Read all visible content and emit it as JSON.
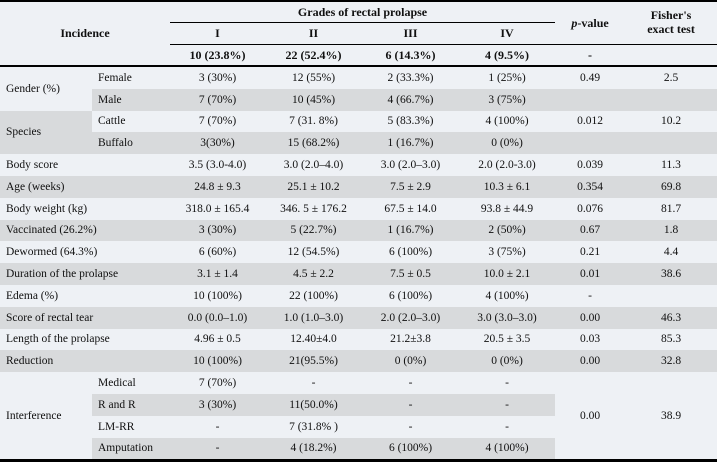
{
  "colors": {
    "light_row": "#eef1f5",
    "gray_row": "#d8dadc",
    "rule": "#000000",
    "text": "#101010"
  },
  "header": {
    "incidence": "Incidence",
    "grades_title": "Grades of rectal prolapse",
    "grade_cols": [
      "I",
      "II",
      "III",
      "IV"
    ],
    "totals": [
      "10 (23.8%)",
      "22 (52.4%)",
      "6 (14.3%)",
      "4 (9.5%)"
    ],
    "totals_p": "-",
    "totals_fisher": "",
    "p_italic": "p",
    "p_rest": "-value",
    "fisher_line1": "Fisher's",
    "fisher_line2": "exact test"
  },
  "rows": [
    {
      "group": "Gender (%)",
      "groupSpan": 2,
      "groupShade": "light",
      "label": "Female",
      "shade": "light",
      "values": [
        "3 (30%)",
        "12 (55%)",
        "2 (33.3%)",
        "1 (25%)"
      ],
      "p": "0.49",
      "fisher": "2.5"
    },
    {
      "label": "Male",
      "shade": "gray",
      "values": [
        "7 (70%)",
        "10 (45%)",
        "4 (66.7%)",
        "3 (75%)"
      ],
      "p": "",
      "fisher": ""
    },
    {
      "group": "Species",
      "groupSpan": 2,
      "groupShade": "gray",
      "label": "Cattle",
      "shade": "light",
      "values": [
        "7 (70%)",
        "7 (31. 8%)",
        "5 (83.3%)",
        "4 (100%)"
      ],
      "p": "0.012",
      "fisher": "10.2"
    },
    {
      "label": "Buffalo",
      "shade": "gray",
      "values": [
        "3(30%)",
        "15 (68.2%)",
        "1 (16.7%)",
        "0 (0%)"
      ],
      "p": "",
      "fisher": ""
    },
    {
      "label": "Body score",
      "wide": true,
      "shade": "light",
      "values": [
        "3.5 (3.0-4.0)",
        "3.0 (2.0–4.0)",
        "3.0 (2.0–3.0)",
        "2.0 (2.0-3.0)"
      ],
      "p": "0.039",
      "fisher": "11.3"
    },
    {
      "label": "Age (weeks)",
      "wide": true,
      "shade": "gray",
      "values": [
        "24.8 ± 9.3",
        "25.1 ± 10.2",
        "7.5 ± 2.9",
        "10.3 ± 6.1"
      ],
      "p": "0.354",
      "fisher": "69.8"
    },
    {
      "label": "Body weight (kg)",
      "wide": true,
      "shade": "light",
      "values": [
        "318.0 ± 165.4",
        "346. 5 ± 176.2",
        "67.5 ± 14.0",
        "93.8 ± 44.9"
      ],
      "p": "0.076",
      "fisher": "81.7"
    },
    {
      "label": "Vaccinated (26.2%)",
      "wide": true,
      "shade": "gray",
      "values": [
        "3 (30%)",
        "5 (22.7%)",
        "1 (16.7%)",
        "2 (50%)"
      ],
      "p": "0.67",
      "fisher": "1.8"
    },
    {
      "label": "Dewormed (64.3%)",
      "wide": true,
      "shade": "light",
      "values": [
        "6 (60%)",
        "12 (54.5%)",
        "6 (100%)",
        "3 (75%)"
      ],
      "p": "0.21",
      "fisher": "4.4"
    },
    {
      "label": "Duration of the prolapse",
      "wide": true,
      "shade": "gray",
      "values": [
        "3.1 ± 1.4",
        "4.5 ± 2.2",
        "7.5 ± 0.5",
        "10.0 ± 2.1"
      ],
      "p": "0.01",
      "fisher": "38.6"
    },
    {
      "label": "Edema (%)",
      "wide": true,
      "shade": "light",
      "values": [
        "10 (100%)",
        "22 (100%)",
        "6 (100%)",
        "4 (100%)"
      ],
      "p": "-",
      "fisher": ""
    },
    {
      "label": "Score of rectal tear",
      "wide": true,
      "shade": "gray",
      "values": [
        "0.0 (0.0–1.0)",
        "1.0 (1.0–3.0)",
        "2.0 (2.0–3.0)",
        "3.0 (3.0–3.0)"
      ],
      "p": "0.00",
      "fisher": "46.3"
    },
    {
      "label": "Length of the prolapse",
      "wide": true,
      "shade": "light",
      "values": [
        "4.96 ± 0.5",
        "12.40±4.0",
        "21.2±3.8",
        "20.5 ± 3.5"
      ],
      "p": "0.03",
      "fisher": "85.3"
    },
    {
      "label": "Reduction",
      "wide": true,
      "shade": "gray",
      "values": [
        "10 (100%)",
        "21(95.5%)",
        "0 (0%)",
        "0 (0%)"
      ],
      "p": "0.00",
      "fisher": "32.8"
    },
    {
      "group": "Interference",
      "groupSpan": 4,
      "groupShade": "light",
      "label": "Medical",
      "shade": "light",
      "values": [
        "7 (70%)",
        "-",
        "-",
        "-"
      ],
      "p": "0.00",
      "fisher": "38.9",
      "pfSpan": 4,
      "pfShade": "light"
    },
    {
      "label": "R and R",
      "shade": "gray",
      "values": [
        "3 (30%)",
        "11(50.0%)",
        "-",
        "-"
      ],
      "pfSkip": true
    },
    {
      "label": "LM-RR",
      "shade": "light",
      "values": [
        "-",
        "7 (31.8% )",
        "-",
        "-"
      ],
      "pfSkip": true
    },
    {
      "label": "Amputation",
      "shade": "gray",
      "values": [
        "-",
        "4 (18.2%)",
        "6 (100%)",
        "4 (100%)"
      ],
      "pfSkip": true
    }
  ]
}
